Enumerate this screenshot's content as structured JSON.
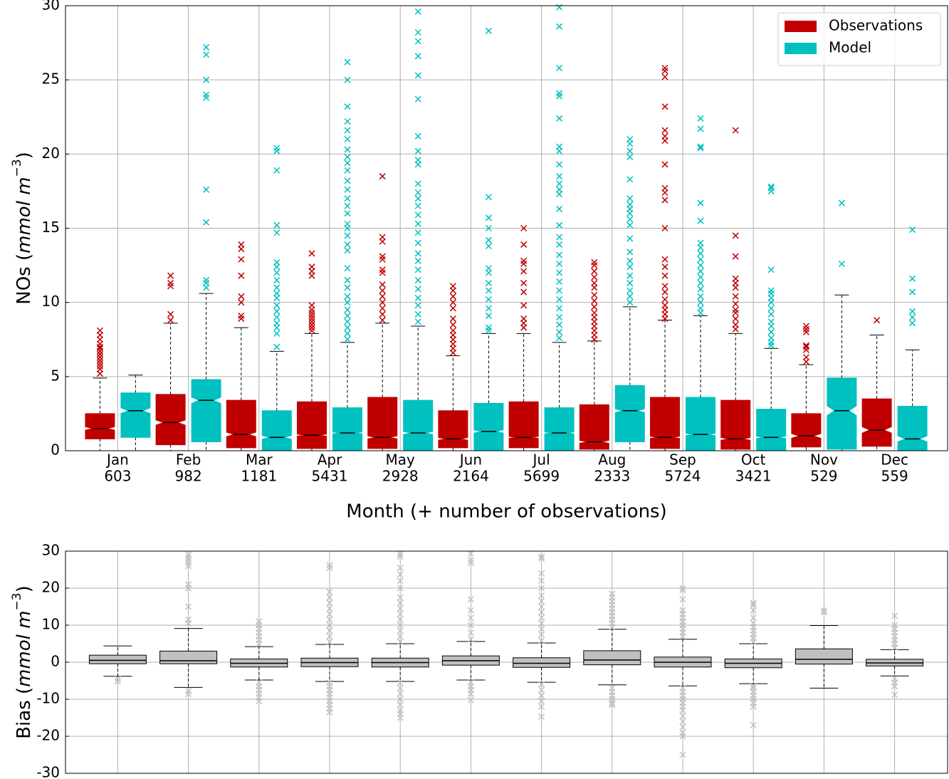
{
  "chart_data": [
    {
      "type": "boxplot",
      "notch": true,
      "grid": true,
      "legend": "upper right",
      "ylabel": [
        "NOs (",
        "mmol m",
        "−3",
        ")"
      ],
      "xlabel": "Month (+ number of observations)",
      "categories": [
        "Jan",
        "Feb",
        "Mar",
        "Apr",
        "May",
        "Jun",
        "Jul",
        "Aug",
        "Sep",
        "Oct",
        "Nov",
        "Dec"
      ],
      "counts": [
        603,
        982,
        1181,
        5431,
        2928,
        2164,
        5699,
        2333,
        5724,
        3421,
        529,
        559
      ],
      "ylim": [
        0,
        30
      ],
      "yticks": [
        0,
        5,
        10,
        15,
        20,
        25,
        30
      ],
      "series": [
        {
          "name": "Observations",
          "color": "#c00000",
          "boxes": [
            {
              "whislo": 0,
              "q1": 0.8,
              "med": 1.5,
              "q3": 2.5,
              "whishi": 4.9,
              "fliers": [
                5.2,
                5.5,
                5.7,
                5.9,
                6.1,
                6.3,
                6.5,
                6.7,
                6.9,
                7.0,
                7.2,
                7.5,
                7.8,
                8.1
              ]
            },
            {
              "whislo": 0,
              "q1": 0.4,
              "med": 1.9,
              "q3": 3.8,
              "whishi": 8.6,
              "fliers": [
                8.8,
                9.2,
                11.1,
                11.3,
                11.8
              ]
            },
            {
              "whislo": 0,
              "q1": 0.2,
              "med": 1.1,
              "q3": 3.4,
              "whishi": 8.3,
              "fliers": [
                8.9,
                9.1,
                10.0,
                10.4,
                11.8,
                12.9,
                13.6,
                13.9
              ]
            },
            {
              "whislo": 0,
              "q1": 0.15,
              "med": 1.05,
              "q3": 3.3,
              "whishi": 7.9,
              "fliers": [
                8.1,
                8.3,
                8.5,
                8.7,
                8.9,
                9.1,
                9.3,
                9.5,
                9.8,
                11.8,
                12.1,
                12.4,
                13.3
              ]
            },
            {
              "whislo": 0,
              "q1": 0.15,
              "med": 0.9,
              "q3": 3.6,
              "whishi": 8.6,
              "fliers": [
                8.8,
                9.2,
                9.6,
                10.0,
                10.4,
                10.8,
                11.2,
                12.0,
                12.2,
                12.9,
                13.1,
                14.1,
                14.4,
                18.5
              ]
            },
            {
              "whislo": 0,
              "q1": 0.2,
              "med": 0.8,
              "q3": 2.7,
              "whishi": 6.4,
              "fliers": [
                6.6,
                6.9,
                7.2,
                7.5,
                7.8,
                8.1,
                8.5,
                8.9,
                9.6,
                10.0,
                10.4,
                10.8,
                11.1
              ]
            },
            {
              "whislo": 0,
              "q1": 0.2,
              "med": 0.9,
              "q3": 3.3,
              "whishi": 7.9,
              "fliers": [
                8.3,
                8.6,
                8.9,
                9.8,
                10.7,
                11.3,
                12.1,
                12.6,
                12.8,
                13.9,
                15.0
              ]
            },
            {
              "whislo": 0,
              "q1": 0.1,
              "med": 0.6,
              "q3": 3.1,
              "whishi": 7.4,
              "fliers": [
                7.5,
                7.8,
                8.1,
                8.4,
                8.7,
                9.0,
                9.3,
                9.7,
                10.1,
                10.5,
                11.0,
                11.3,
                11.7,
                12.1,
                12.5,
                12.7
              ]
            },
            {
              "whislo": 0,
              "q1": 0.15,
              "med": 0.9,
              "q3": 3.6,
              "whishi": 8.8,
              "fliers": [
                8.9,
                9.2,
                9.5,
                9.8,
                10.2,
                10.7,
                11.1,
                11.8,
                12.4,
                12.9,
                15.0,
                16.9,
                17.4,
                17.7,
                19.3,
                20.9,
                21.2,
                21.6,
                23.2,
                25.2,
                25.6,
                25.8
              ]
            },
            {
              "whislo": 0,
              "q1": 0.1,
              "med": 0.8,
              "q3": 3.4,
              "whishi": 7.9,
              "fliers": [
                8.2,
                8.5,
                8.9,
                9.3,
                9.5,
                9.9,
                10.4,
                11.0,
                11.3,
                11.6,
                13.1,
                14.5,
                21.6
              ]
            },
            {
              "whislo": 0,
              "q1": 0.25,
              "med": 1.0,
              "q3": 2.5,
              "whishi": 5.8,
              "fliers": [
                6.0,
                6.3,
                6.8,
                7.0,
                7.1,
                8.0,
                8.2,
                8.4
              ]
            },
            {
              "whislo": 0,
              "q1": 0.3,
              "med": 1.4,
              "q3": 3.5,
              "whishi": 7.8,
              "fliers": [
                8.8
              ]
            }
          ]
        },
        {
          "name": "Model",
          "color": "#00c0c0",
          "boxes": [
            {
              "whislo": 0,
              "q1": 0.9,
              "med": 2.7,
              "q3": 3.9,
              "whishi": 5.1,
              "fliers": []
            },
            {
              "whislo": 0,
              "q1": 0.6,
              "med": 3.4,
              "q3": 4.8,
              "whishi": 10.6,
              "fliers": [
                11.0,
                11.3,
                11.5,
                15.4,
                17.6,
                23.8,
                24.0,
                25.0,
                26.7,
                27.2
              ]
            },
            {
              "whislo": 0,
              "q1": 0,
              "med": 0.9,
              "q3": 2.7,
              "whishi": 6.7,
              "fliers": [
                7.0,
                7.9,
                8.3,
                8.6,
                9.0,
                9.4,
                9.8,
                10.3,
                10.6,
                11.0,
                11.5,
                12.0,
                12.4,
                12.7,
                14.7,
                15.2,
                18.9,
                20.2,
                20.4
              ]
            },
            {
              "whislo": 0,
              "q1": 0,
              "med": 1.2,
              "q3": 2.9,
              "whishi": 7.3,
              "fliers": [
                7.5,
                7.9,
                8.3,
                8.7,
                9.1,
                9.5,
                10.0,
                10.4,
                11.0,
                11.5,
                12.3,
                13.5,
                13.9,
                14.5,
                15.0,
                15.3,
                16.0,
                16.5,
                17.0,
                17.6,
                18.2,
                18.9,
                19.4,
                19.8,
                20.3,
                21.0,
                21.6,
                22.2,
                23.2,
                25.0,
                26.2
              ]
            },
            {
              "whislo": 0,
              "q1": 0,
              "med": 1.2,
              "q3": 3.4,
              "whishi": 8.4,
              "fliers": [
                8.7,
                9.2,
                9.8,
                10.3,
                10.9,
                11.5,
                12.2,
                12.8,
                13.3,
                14.0,
                14.7,
                15.3,
                15.9,
                16.5,
                17.0,
                17.4,
                18.0,
                19.3,
                19.6,
                20.2,
                21.2,
                23.7,
                25.3,
                26.6,
                27.6,
                28.2,
                29.6
              ]
            },
            {
              "whislo": 0,
              "q1": 0,
              "med": 1.3,
              "q3": 3.2,
              "whishi": 7.9,
              "fliers": [
                8.1,
                8.3,
                9.1,
                9.6,
                10.2,
                10.8,
                11.3,
                12.0,
                12.3,
                13.8,
                14.2,
                15.0,
                15.7,
                17.1,
                28.3
              ]
            },
            {
              "whislo": 0,
              "q1": 0,
              "med": 1.2,
              "q3": 2.9,
              "whishi": 7.3,
              "fliers": [
                7.6,
                8.0,
                8.5,
                9.0,
                9.6,
                10.2,
                10.8,
                11.4,
                12.0,
                12.6,
                13.2,
                13.9,
                14.4,
                15.2,
                16.3,
                17.3,
                17.6,
                18.0,
                18.5,
                19.3,
                20.2,
                20.5,
                22.4,
                23.9,
                24.1,
                25.8,
                28.6,
                29.9
              ]
            },
            {
              "whislo": 0,
              "q1": 0.6,
              "med": 2.7,
              "q3": 4.4,
              "whishi": 9.7,
              "fliers": [
                10.0,
                10.4,
                10.8,
                11.3,
                11.8,
                12.4,
                12.8,
                13.4,
                14.3,
                15.2,
                15.6,
                16.0,
                16.3,
                16.6,
                17.0,
                18.3,
                19.8,
                20.2,
                20.7,
                21.0
              ]
            },
            {
              "whislo": 0,
              "q1": 0,
              "med": 1.1,
              "q3": 3.6,
              "whishi": 9.1,
              "fliers": [
                9.3,
                9.6,
                10.0,
                10.4,
                10.9,
                11.3,
                11.7,
                12.1,
                12.5,
                12.9,
                13.3,
                13.7,
                14.0,
                15.5,
                16.7,
                20.4,
                20.5,
                21.7,
                22.4
              ]
            },
            {
              "whislo": 0,
              "q1": 0,
              "med": 0.9,
              "q3": 2.8,
              "whishi": 6.9,
              "fliers": [
                7.1,
                7.3,
                7.6,
                8.0,
                8.4,
                8.7,
                9.2,
                9.6,
                10.0,
                10.3,
                10.6,
                10.8,
                12.2,
                17.5,
                17.7,
                17.8
              ]
            },
            {
              "whislo": 0,
              "q1": 0.1,
              "med": 2.7,
              "q3": 4.9,
              "whishi": 10.5,
              "fliers": [
                12.6,
                16.7
              ]
            },
            {
              "whislo": 0,
              "q1": 0,
              "med": 0.8,
              "q3": 3.0,
              "whishi": 6.8,
              "fliers": [
                8.6,
                9.0,
                9.4,
                10.7,
                11.6,
                14.9
              ]
            }
          ]
        }
      ]
    },
    {
      "type": "boxplot",
      "notch": false,
      "grid": true,
      "ylabel": [
        "Bias (",
        "mmol m",
        "−3",
        ")"
      ],
      "ylim": [
        -30,
        30
      ],
      "yticks": [
        -30,
        -20,
        -10,
        0,
        10,
        20,
        30
      ],
      "series": [
        {
          "color": "#c0c0c0",
          "boxes": [
            {
              "whislo": -3.8,
              "q1": -0.4,
              "med": 0.5,
              "q3": 1.9,
              "whishi": 4.4,
              "fliers": [
                -4.5,
                -5.2
              ]
            },
            {
              "whislo": -6.8,
              "q1": -0.4,
              "med": 0.4,
              "q3": 3.0,
              "whishi": 9.1,
              "fliers": [
                -7.8,
                -8.6,
                10.5,
                11.5,
                15.0,
                20.0,
                21.0,
                26.0,
                26.8,
                27.5,
                28.2,
                29.0
              ]
            },
            {
              "whislo": -4.8,
              "q1": -1.3,
              "med": -0.3,
              "q3": 0.9,
              "whishi": 4.2,
              "fliers": [
                -5.5,
                -6.5,
                -7.5,
                -8.5,
                -9.5,
                -10.5,
                5.0,
                6.0,
                7.0,
                8.0,
                9.0,
                10.0,
                11.0
              ]
            },
            {
              "whislo": -5.2,
              "q1": -1.2,
              "med": -0.1,
              "q3": 1.1,
              "whishi": 4.8,
              "fliers": [
                -5.5,
                -6.5,
                -7.5,
                -8.5,
                -9.5,
                -10.5,
                -11.5,
                -12.5,
                -13.5,
                5.5,
                7.0,
                8.5,
                10.0,
                11.5,
                13.0,
                14.5,
                16.0,
                17.5,
                19.0,
                25.5,
                26.2
              ]
            },
            {
              "whislo": -5.2,
              "q1": -1.3,
              "med": -0.1,
              "q3": 1.1,
              "whishi": 5.0,
              "fliers": [
                -5.5,
                -7.0,
                -8.5,
                -10.0,
                -11.5,
                -13.0,
                -14.0,
                -15.0,
                5.5,
                7.0,
                8.5,
                10.0,
                11.5,
                13.0,
                14.5,
                16.0,
                17.5,
                20.0,
                22.0,
                23.7,
                25.5,
                28.5,
                29.2
              ]
            },
            {
              "whislo": -4.8,
              "q1": -0.8,
              "med": 0.4,
              "q3": 1.7,
              "whishi": 5.6,
              "fliers": [
                -5.5,
                -6.5,
                -7.5,
                -8.5,
                -10.2,
                6.2,
                8.0,
                10.0,
                12.0,
                14.0,
                17.0,
                26.8,
                27.5,
                29.3
              ]
            },
            {
              "whislo": -5.4,
              "q1": -1.4,
              "med": -0.3,
              "q3": 1.2,
              "whishi": 5.2,
              "fliers": [
                -6.0,
                -7.5,
                -9.0,
                -10.5,
                -12.0,
                -14.7,
                5.8,
                7.5,
                9.0,
                10.5,
                12.0,
                13.5,
                15.0,
                16.5,
                18.0,
                20.0,
                22.0,
                24.0,
                28.0,
                28.5
              ]
            },
            {
              "whislo": -6.1,
              "q1": -0.7,
              "med": 0.6,
              "q3": 3.1,
              "whishi": 8.9,
              "fliers": [
                -7.0,
                -8.0,
                -9.0,
                -10.0,
                -11.0,
                -11.5,
                9.5,
                10.5,
                11.5,
                12.5,
                13.5,
                14.5,
                15.5,
                16.5,
                17.5,
                18.5
              ]
            },
            {
              "whislo": -6.4,
              "q1": -1.3,
              "med": 0,
              "q3": 1.4,
              "whishi": 6.2,
              "fliers": [
                -25.0,
                -20.0,
                -19.0,
                -17.5,
                -16.0,
                -14.5,
                -13.0,
                -12.0,
                -11.0,
                -10.0,
                -9.0,
                -8.0,
                -7.0,
                7.0,
                8.0,
                9.0,
                10.0,
                11.0,
                12.0,
                13.0,
                14.0,
                17.0,
                19.5,
                20.0
              ]
            },
            {
              "whislo": -5.8,
              "q1": -1.5,
              "med": -0.3,
              "q3": 0.9,
              "whishi": 5.0,
              "fliers": [
                -17.0,
                -12.0,
                -11.0,
                -10.0,
                -9.0,
                -8.0,
                -7.0,
                -6.5,
                5.5,
                6.5,
                7.5,
                8.5,
                9.5,
                10.5,
                12.0,
                14.0,
                15.5,
                16.0
              ]
            },
            {
              "whislo": -7.0,
              "q1": -0.5,
              "med": 0.8,
              "q3": 3.6,
              "whishi": 9.9,
              "fliers": [
                13.5,
                14.0
              ]
            },
            {
              "whislo": -3.7,
              "q1": -1.0,
              "med": -0.2,
              "q3": 0.8,
              "whishi": 3.4,
              "fliers": [
                -4.5,
                -5.5,
                -6.5,
                -8.8,
                4.0,
                5.0,
                6.0,
                7.0,
                8.0,
                9.0,
                10.0,
                12.5
              ]
            }
          ]
        }
      ]
    }
  ]
}
